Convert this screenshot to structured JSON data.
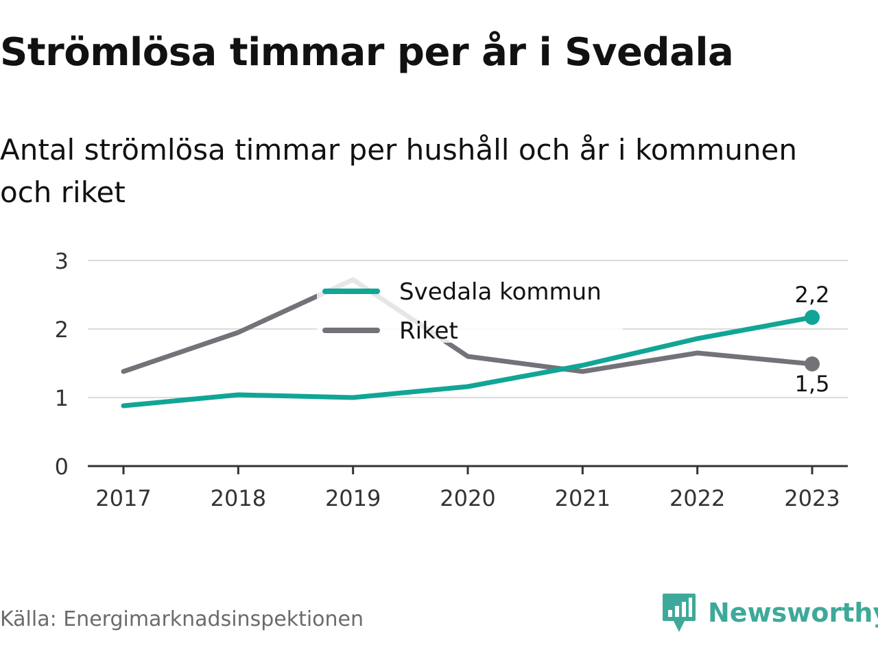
{
  "title": "Strömlösa timmar per år i Svedala",
  "subtitle": "Antal strömlösa timmar per hushåll och år i kommunen och riket",
  "source": "Källa: Energimarknadsinspektionen",
  "brand": {
    "name": "Newsworthy",
    "icon": "newsworthy-bar-logo-icon",
    "color": "#3ea99a"
  },
  "chart_data": {
    "type": "line",
    "title": "Strömlösa timmar per år i Svedala",
    "subtitle": "Antal strömlösa timmar per hushåll och år i kommunen och riket",
    "xlabel": "",
    "ylabel": "",
    "x": [
      "2017",
      "2018",
      "2019",
      "2020",
      "2021",
      "2022",
      "2023"
    ],
    "ylim": [
      0,
      3
    ],
    "yticks": [
      0,
      1,
      2,
      3
    ],
    "grid": true,
    "legend_position": "top-center",
    "series": [
      {
        "name": "Svedala kommun",
        "color": "#11a596",
        "values": [
          0.88,
          1.04,
          1.0,
          1.16,
          1.47,
          1.86,
          2.17
        ],
        "end_label": "2,2"
      },
      {
        "name": "Riket",
        "color": "#737278",
        "values": [
          1.38,
          1.95,
          2.72,
          1.6,
          1.38,
          1.65,
          1.49
        ],
        "end_label": "1,5"
      }
    ]
  }
}
